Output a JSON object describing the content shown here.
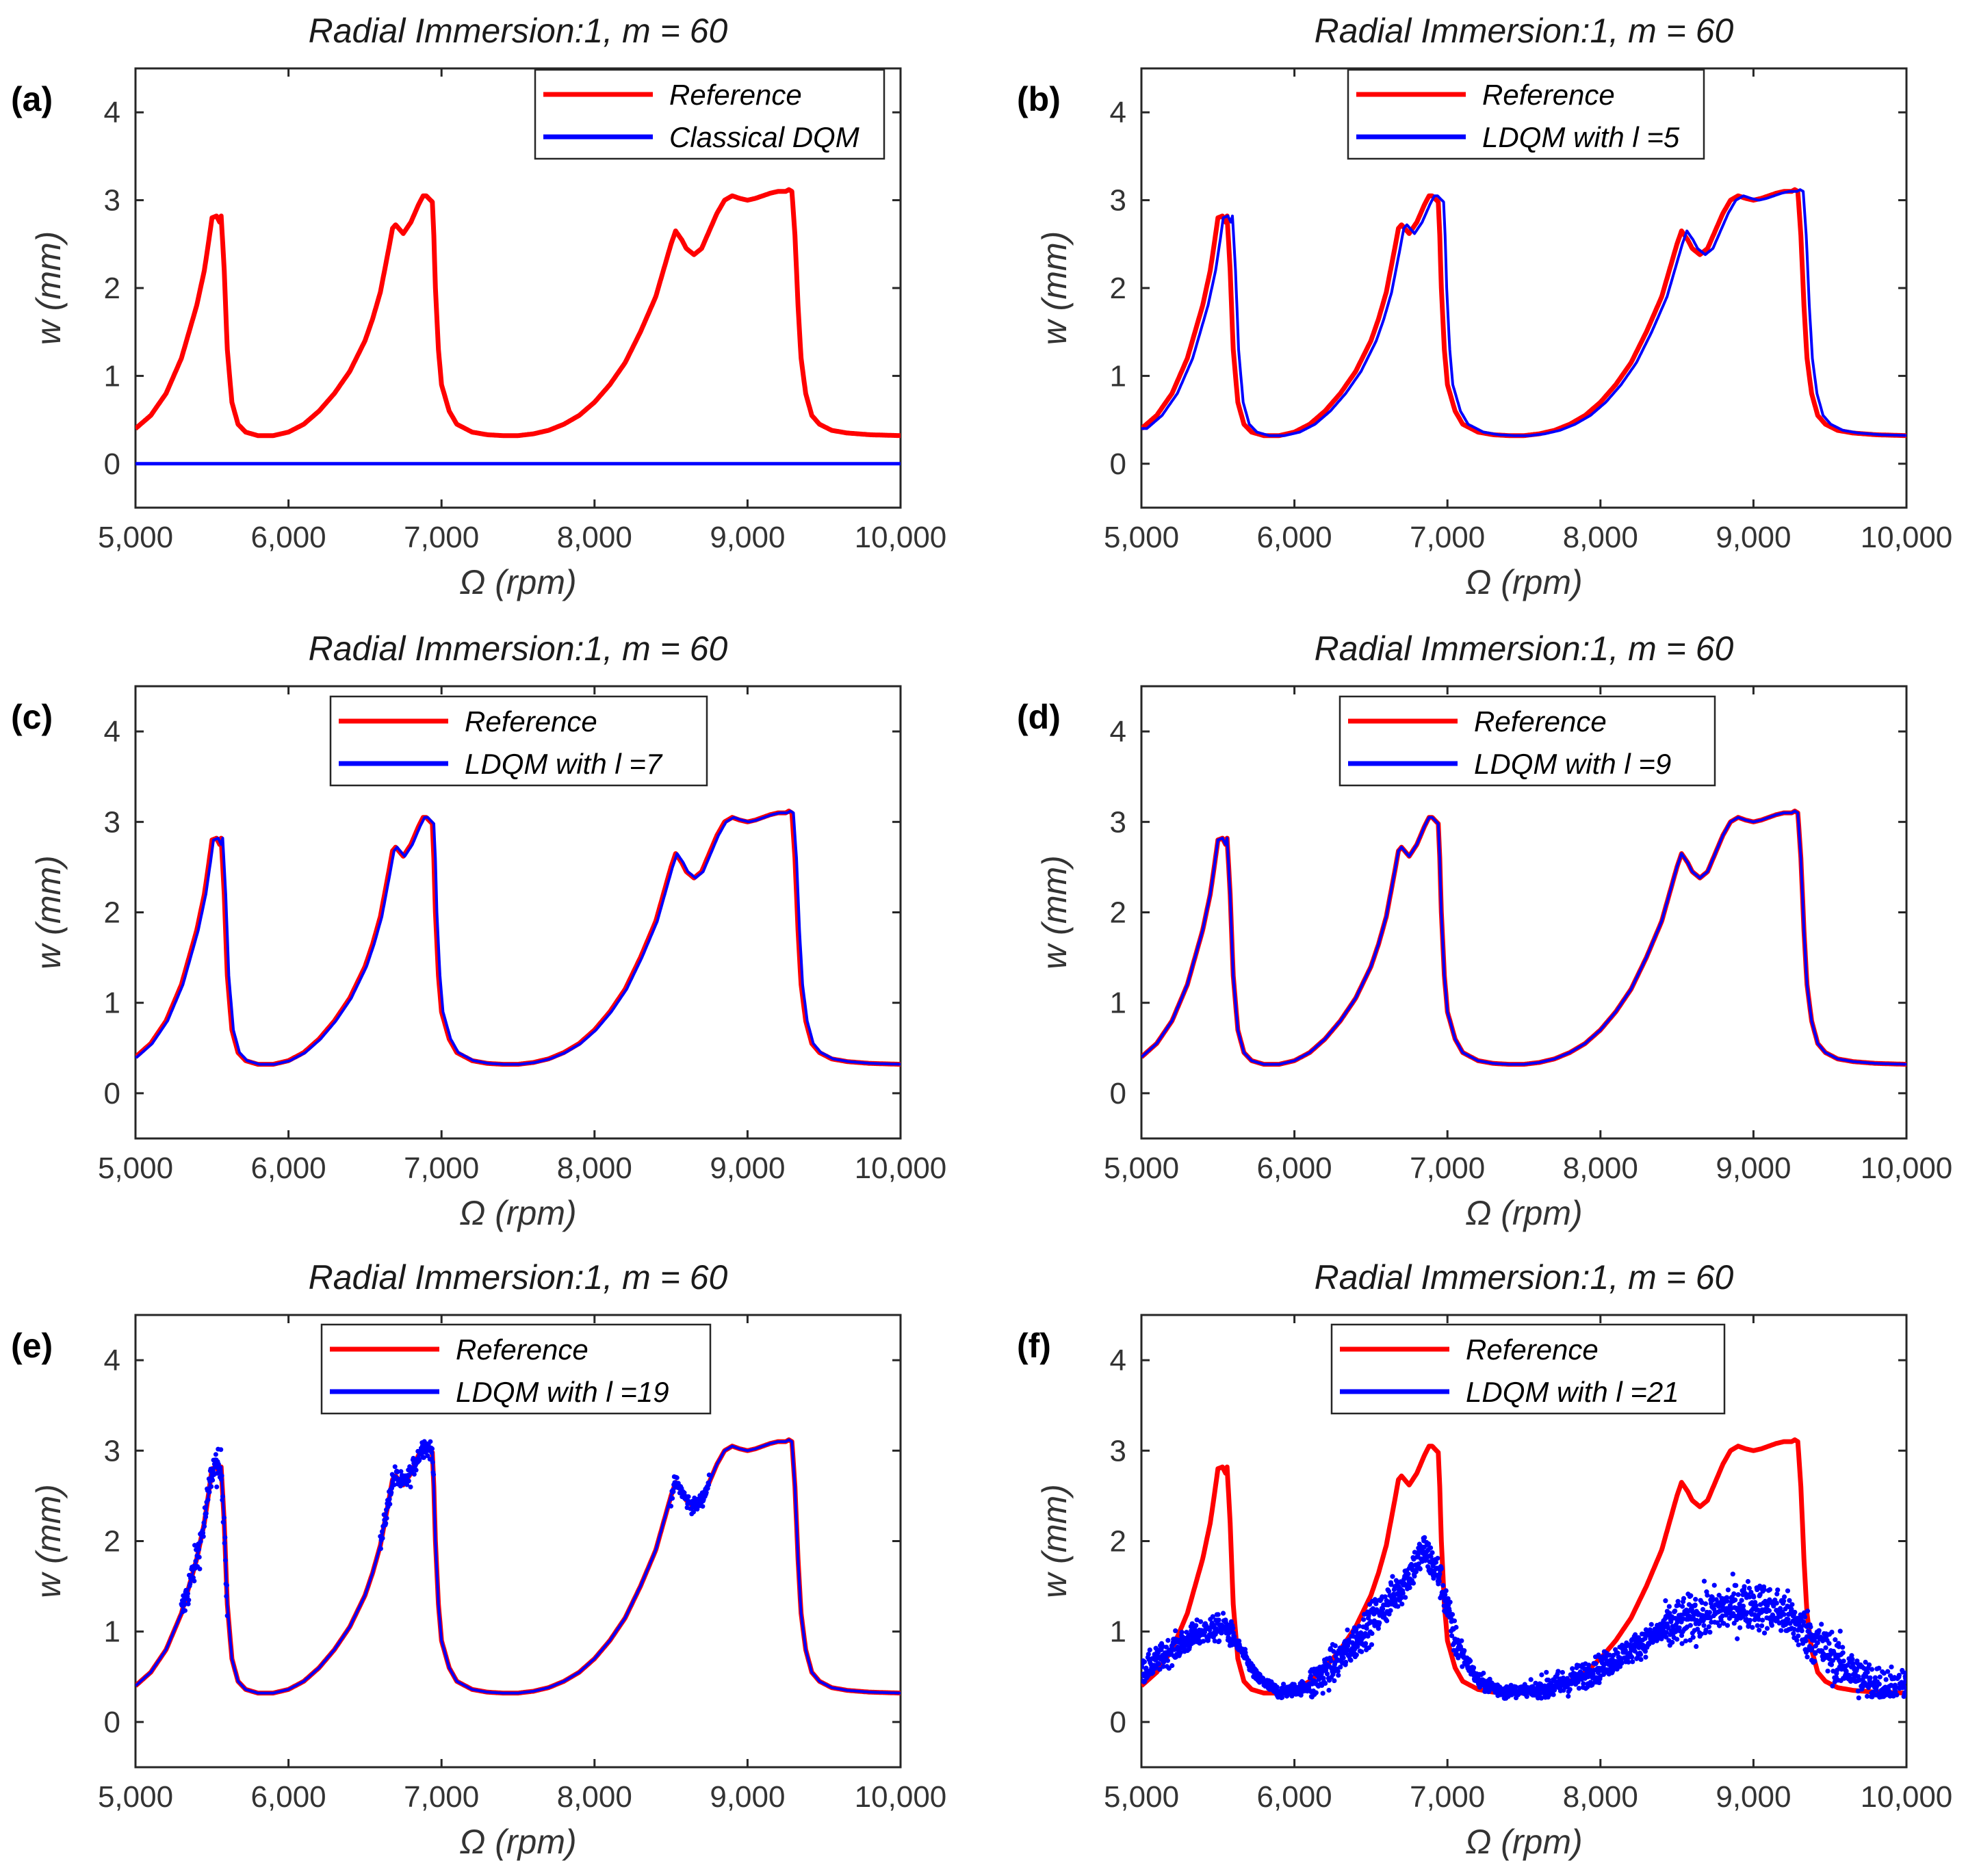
{
  "chart_data": [
    {
      "panel": "(a)",
      "type": "line",
      "title": "Radial Immersion:1,  m = 60",
      "xlabel": "Ω (rpm)",
      "ylabel": "w (mm)",
      "xlim": [
        5000,
        10000
      ],
      "ylim": [
        -0.5,
        4.5
      ],
      "xticks": [
        "5,000",
        "6,000",
        "7,000",
        "8,000",
        "9,000",
        "10,000"
      ],
      "yticks": [
        "0",
        "1",
        "2",
        "3",
        "4"
      ],
      "grid": false,
      "legend_position": "top-right",
      "series": [
        {
          "name": "Reference",
          "color": "#ff0000",
          "style": "line"
        },
        {
          "name": "Classical DQM",
          "color": "#0000ff",
          "style": "line",
          "mode": "zero",
          "x": [
            5000,
            10000
          ],
          "y": [
            0,
            0
          ]
        }
      ]
    },
    {
      "panel": "(b)",
      "type": "line",
      "title": "Radial Immersion:1,  m = 60",
      "xlabel": "Ω (rpm)",
      "ylabel": "w (mm)",
      "xlim": [
        5000,
        10000
      ],
      "ylim": [
        -0.5,
        4.5
      ],
      "xticks": [
        "5,000",
        "6,000",
        "7,000",
        "8,000",
        "9,000",
        "10,000"
      ],
      "yticks": [
        "0",
        "1",
        "2",
        "3",
        "4"
      ],
      "grid": false,
      "legend_position": "top-center",
      "series": [
        {
          "name": "Reference",
          "color": "#ff0000",
          "style": "line"
        },
        {
          "name": "LDQM  with  l =5",
          "color": "#0000ff",
          "style": "line",
          "mode": "shift",
          "shift": 35
        }
      ]
    },
    {
      "panel": "(c)",
      "type": "line",
      "title": "Radial Immersion:1,  m = 60",
      "xlabel": "Ω (rpm)",
      "ylabel": "w (mm)",
      "xlim": [
        5000,
        10000
      ],
      "ylim": [
        -0.5,
        4.5
      ],
      "xticks": [
        "5,000",
        "6,000",
        "7,000",
        "8,000",
        "9,000",
        "10,000"
      ],
      "yticks": [
        "0",
        "1",
        "2",
        "3",
        "4"
      ],
      "grid": false,
      "legend_position": "top-center",
      "series": [
        {
          "name": "Reference",
          "color": "#ff0000",
          "style": "line"
        },
        {
          "name": "LDQM  with  l =7",
          "color": "#0000ff",
          "style": "line",
          "mode": "shift",
          "shift": 10
        }
      ]
    },
    {
      "panel": "(d)",
      "type": "line",
      "title": "Radial Immersion:1,  m = 60",
      "xlabel": "Ω (rpm)",
      "ylabel": "w (mm)",
      "xlim": [
        5000,
        10000
      ],
      "ylim": [
        -0.5,
        4.5
      ],
      "xticks": [
        "5,000",
        "6,000",
        "7,000",
        "8,000",
        "9,000",
        "10,000"
      ],
      "yticks": [
        "0",
        "1",
        "2",
        "3",
        "4"
      ],
      "grid": false,
      "legend_position": "top-center",
      "series": [
        {
          "name": "Reference",
          "color": "#ff0000",
          "style": "line"
        },
        {
          "name": "LDQM  with  l =9",
          "color": "#0000ff",
          "style": "line",
          "mode": "shift",
          "shift": 0
        }
      ]
    },
    {
      "panel": "(e)",
      "type": "line",
      "title": "Radial Immersion:1,  m = 60",
      "xlabel": "Ω (rpm)",
      "ylabel": "w (mm)",
      "xlim": [
        5000,
        10000
      ],
      "ylim": [
        -0.5,
        4.5
      ],
      "xticks": [
        "5,000",
        "6,000",
        "7,000",
        "8,000",
        "9,000",
        "10,000"
      ],
      "yticks": [
        "0",
        "1",
        "2",
        "3",
        "4"
      ],
      "grid": false,
      "legend_position": "top-center",
      "series": [
        {
          "name": "Reference",
          "color": "#ff0000",
          "style": "line"
        },
        {
          "name": "LDQM  with  l =19",
          "color": "#0000ff",
          "style": "line+noise",
          "mode": "noisy",
          "noise_regions": [
            [
              5300,
              5600,
              0.35
            ],
            [
              6600,
              6950,
              0.2
            ],
            [
              8500,
              8750,
              0.15
            ]
          ]
        }
      ]
    },
    {
      "panel": "(f)",
      "type": "scatter",
      "title": "Radial Immersion:1,  m = 60",
      "xlabel": "Ω (rpm)",
      "ylabel": "w (mm)",
      "xlim": [
        5000,
        10000
      ],
      "ylim": [
        -0.5,
        4.5
      ],
      "xticks": [
        "5,000",
        "6,000",
        "7,000",
        "8,000",
        "9,000",
        "10,000"
      ],
      "yticks": [
        "0",
        "1",
        "2",
        "3",
        "4"
      ],
      "grid": false,
      "legend_position": "top-center",
      "series": [
        {
          "name": "Reference",
          "color": "#ff0000",
          "style": "line"
        },
        {
          "name": "LDQM  with  l =21",
          "color": "#0000ff",
          "style": "scatter",
          "mode": "scatter",
          "trend": {
            "x": [
              5000,
              5200,
              5400,
              5550,
              5650,
              5750,
              5900,
              6100,
              6300,
              6500,
              6700,
              6850,
              6950,
              7050,
              7200,
              7400,
              7600,
              7800,
              8000,
              8200,
              8400,
              8600,
              8800,
              9000,
              9200,
              9400,
              9600,
              9800,
              10000
            ],
            "y": [
              0.55,
              0.8,
              1.0,
              1.05,
              0.8,
              0.5,
              0.32,
              0.4,
              0.7,
              1.1,
              1.5,
              1.9,
              1.6,
              0.9,
              0.45,
              0.32,
              0.35,
              0.45,
              0.6,
              0.8,
              1.0,
              1.15,
              1.25,
              1.3,
              1.2,
              0.9,
              0.6,
              0.4,
              0.35
            ]
          },
          "spread": [
            [
              5000,
              5600,
              0.25
            ],
            [
              5600,
              6100,
              0.12
            ],
            [
              6100,
              7100,
              0.35
            ],
            [
              7100,
              7600,
              0.15
            ],
            [
              7600,
              8400,
              0.25
            ],
            [
              8400,
              9600,
              0.45
            ],
            [
              9600,
              10000,
              0.4
            ]
          ]
        }
      ]
    }
  ],
  "reference_curve": {
    "x": [
      5000,
      5100,
      5200,
      5300,
      5400,
      5450,
      5480,
      5500,
      5530,
      5550,
      5560,
      5580,
      5600,
      5630,
      5670,
      5720,
      5800,
      5900,
      6000,
      6100,
      6200,
      6300,
      6400,
      6500,
      6550,
      6600,
      6650,
      6680,
      6700,
      6750,
      6800,
      6850,
      6880,
      6900,
      6940,
      6950,
      6960,
      6980,
      7000,
      7050,
      7100,
      7200,
      7300,
      7400,
      7500,
      7600,
      7700,
      7800,
      7900,
      8000,
      8100,
      8200,
      8300,
      8400,
      8450,
      8500,
      8530,
      8570,
      8600,
      8650,
      8700,
      8750,
      8800,
      8850,
      8900,
      8950,
      9000,
      9050,
      9100,
      9150,
      9200,
      9250,
      9270,
      9290,
      9310,
      9330,
      9350,
      9380,
      9420,
      9470,
      9550,
      9650,
      9800,
      10000
    ],
    "y": [
      0.4,
      0.55,
      0.8,
      1.2,
      1.8,
      2.2,
      2.55,
      2.8,
      2.82,
      2.75,
      2.82,
      2.2,
      1.3,
      0.7,
      0.45,
      0.36,
      0.32,
      0.32,
      0.36,
      0.45,
      0.6,
      0.8,
      1.05,
      1.4,
      1.65,
      1.95,
      2.4,
      2.68,
      2.72,
      2.62,
      2.75,
      2.95,
      3.05,
      3.05,
      2.98,
      2.6,
      2.0,
      1.3,
      0.9,
      0.6,
      0.45,
      0.36,
      0.33,
      0.32,
      0.32,
      0.34,
      0.38,
      0.45,
      0.55,
      0.7,
      0.9,
      1.15,
      1.5,
      1.9,
      2.2,
      2.5,
      2.65,
      2.55,
      2.45,
      2.38,
      2.45,
      2.65,
      2.85,
      3.0,
      3.05,
      3.02,
      3.0,
      3.02,
      3.05,
      3.08,
      3.1,
      3.1,
      3.12,
      3.1,
      2.6,
      1.8,
      1.2,
      0.8,
      0.55,
      0.45,
      0.38,
      0.35,
      0.33,
      0.32
    ]
  }
}
